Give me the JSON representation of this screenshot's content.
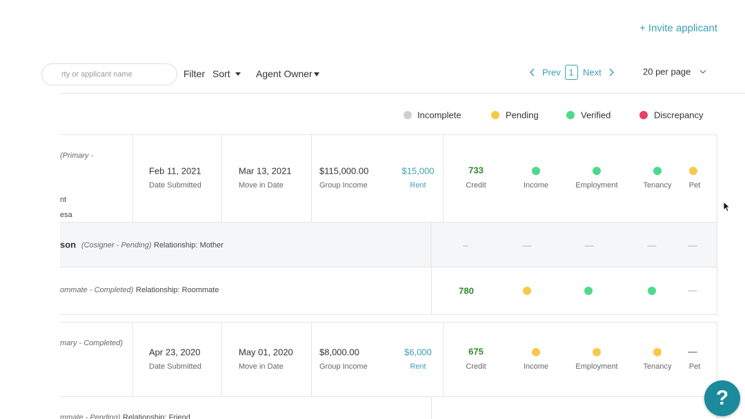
{
  "header": {
    "invite": "+ Invite applicant"
  },
  "toolbar": {
    "search_placeholder": "rty or applicant name",
    "filter": "Filter",
    "sort": "Sort",
    "agent_owner": "Agent Owner",
    "prev": "Prev",
    "page": "1",
    "next": "Next",
    "per_page": "20 per page"
  },
  "legend": [
    "Incomplete",
    "Pending",
    "Verified",
    "Discrepancy"
  ],
  "applications": [
    {
      "primary": {
        "role": "(Primary -",
        "details": [
          "nt",
          "esa"
        ],
        "credit": "733"
      },
      "date_submitted": {
        "value": "Feb 11, 2021",
        "label": "Date Submitted"
      },
      "move_in": {
        "value": "Mar 13, 2021",
        "label": "Move in Date"
      },
      "income": {
        "value": "$115,000.00",
        "label": "Group Income"
      },
      "rent": {
        "value": "$15,000",
        "label": "Rent"
      },
      "check_labels": [
        "Credit",
        "Income",
        "Employment",
        "Tenancy",
        "Pet"
      ],
      "others": [
        {
          "name": "son",
          "role": "(Cosigner - Pending)",
          "relationship": "Relationship: Mother",
          "checks": [
            "–",
            "—",
            "—",
            "—",
            "—"
          ]
        },
        {
          "role": "ommate - Completed)",
          "relationship": "Relationship: Roommate",
          "credit": "780",
          "pet": "—"
        }
      ]
    },
    {
      "primary": {
        "role": "mary - Completed)",
        "credit": "675",
        "pet": "—"
      },
      "date_submitted": {
        "value": "Apr 23, 2020",
        "label": "Date Submitted"
      },
      "move_in": {
        "value": "May 01, 2020",
        "label": "Move in Date"
      },
      "income": {
        "value": "$8,000.00",
        "label": "Group Income"
      },
      "rent": {
        "value": "$6,000",
        "label": "Rent"
      },
      "check_labels": [
        "Credit",
        "Income",
        "Employment",
        "Tenancy",
        "Pet"
      ],
      "others": [
        {
          "role": "mmate - Pending)",
          "relationship": "Relationship: Friend"
        }
      ]
    }
  ],
  "help": "?"
}
